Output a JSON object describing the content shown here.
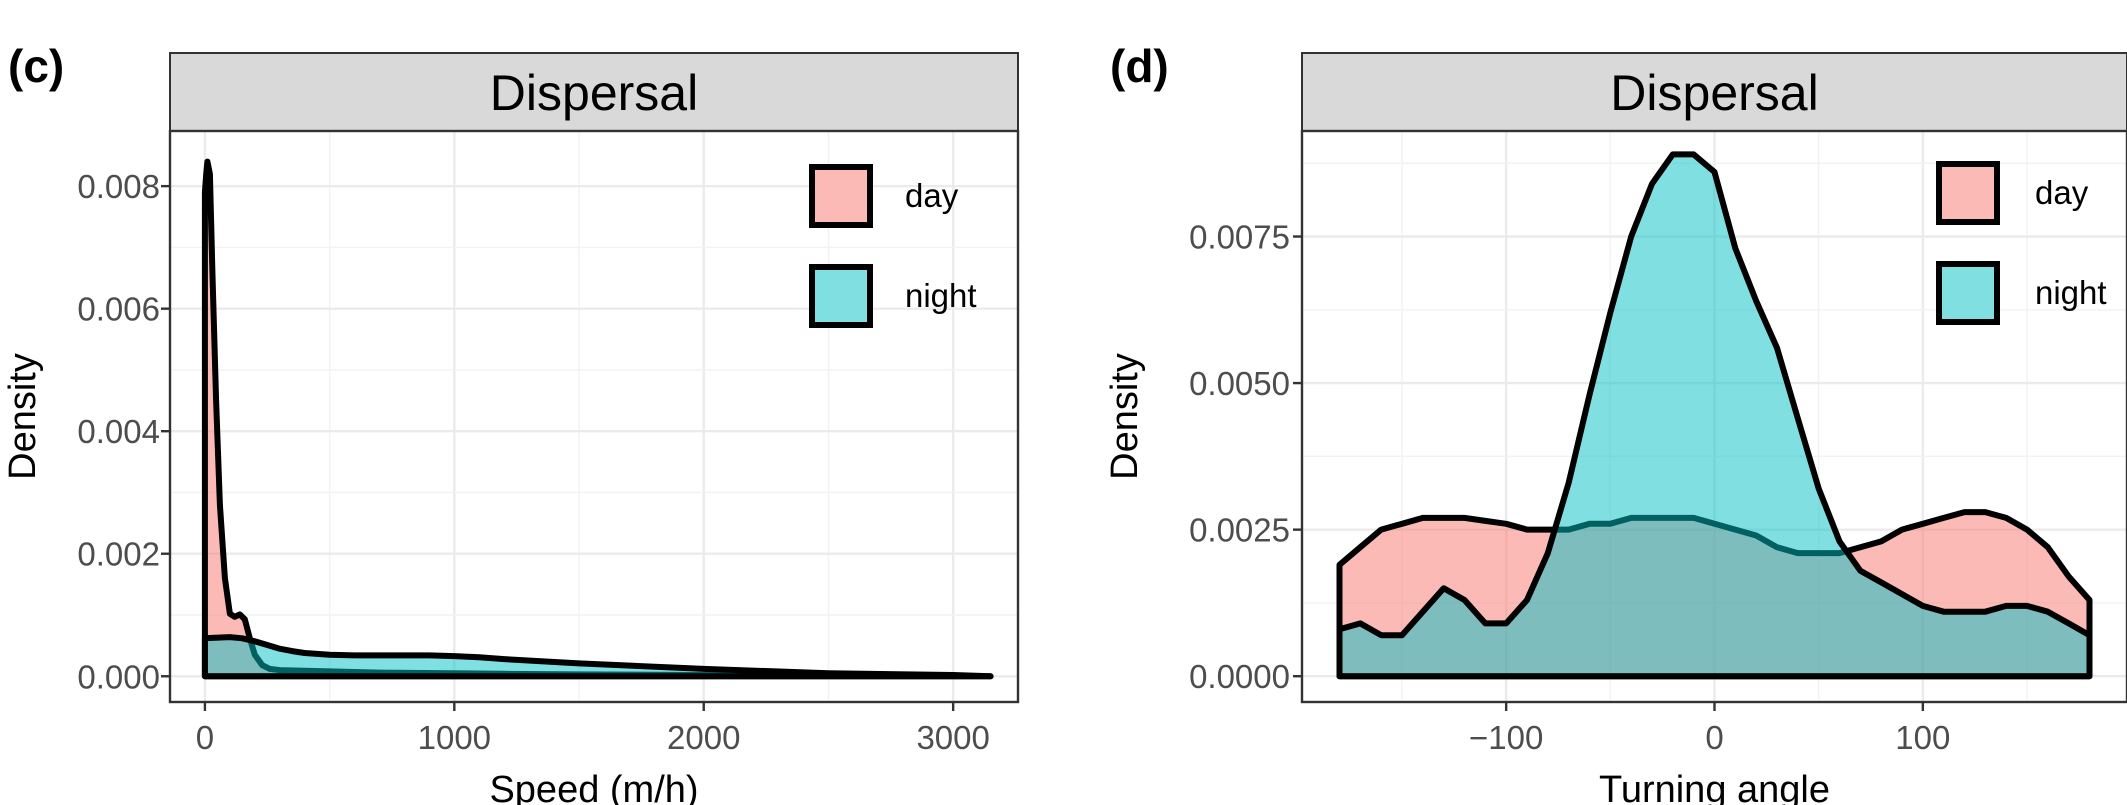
{
  "chart_data": [
    {
      "type": "area",
      "panel_tag": "(c)",
      "strip_title": "Dispersal",
      "xlabel": "Speed (m/h)",
      "ylabel": "Density",
      "xlim": [
        -140,
        3260
      ],
      "ylim": [
        -0.00042,
        0.0089
      ],
      "xticks": [
        0,
        1000,
        2000,
        3000
      ],
      "xtick_labels": [
        "0",
        "1000",
        "2000",
        "3000"
      ],
      "yticks": [
        0,
        0.002,
        0.004,
        0.006,
        0.008
      ],
      "ytick_labels": [
        "0.000",
        "0.002",
        "0.004",
        "0.006",
        "0.008"
      ],
      "legend": {
        "position": "top-right",
        "entries": [
          "day",
          "night"
        ]
      },
      "grid": true,
      "series": [
        {
          "name": "day",
          "color": "#F8766D",
          "x": [
            0,
            5,
            10,
            20,
            30,
            45,
            60,
            80,
            100,
            120,
            140,
            160,
            180,
            200,
            230,
            260,
            300,
            400,
            500,
            700,
            1000,
            1200,
            1500,
            2000,
            2500,
            3000,
            3150
          ],
          "y": [
            0.0079,
            0.0082,
            0.0084,
            0.0082,
            0.0066,
            0.0045,
            0.0028,
            0.0016,
            0.00102,
            0.00097,
            0.00101,
            0.00093,
            0.00062,
            0.00035,
            0.00018,
            0.00012,
            0.0001,
            9e-05,
            8e-05,
            6e-05,
            5e-05,
            4e-05,
            3e-05,
            2e-05,
            1e-05,
            5e-06,
            0.0
          ]
        },
        {
          "name": "night",
          "color": "#00BFC4",
          "x": [
            0,
            40,
            100,
            150,
            200,
            250,
            300,
            350,
            400,
            500,
            600,
            700,
            800,
            900,
            1000,
            1100,
            1200,
            1500,
            2000,
            2500,
            3000,
            3150
          ],
          "y": [
            0.00062,
            0.00063,
            0.00064,
            0.00062,
            0.00057,
            0.00051,
            0.00045,
            0.00041,
            0.00038,
            0.00035,
            0.00034,
            0.00034,
            0.00034,
            0.00034,
            0.00033,
            0.00031,
            0.00028,
            0.00021,
            0.00012,
            5e-05,
            2e-05,
            0.0
          ]
        }
      ]
    },
    {
      "type": "area",
      "panel_tag": "(d)",
      "strip_title": "Dispersal",
      "xlabel": "Turning angle",
      "ylabel": "Density",
      "xlim": [
        -198,
        198
      ],
      "ylim": [
        -0.00044,
        0.0093
      ],
      "xticks": [
        -100,
        0,
        100
      ],
      "xtick_labels": [
        "−100",
        "0",
        "100"
      ],
      "yticks": [
        0,
        0.0025,
        0.005,
        0.0075
      ],
      "ytick_labels": [
        "0.0000",
        "0.0025",
        "0.0050",
        "0.0075"
      ],
      "legend": {
        "position": "top-right",
        "entries": [
          "day",
          "night"
        ]
      },
      "grid": true,
      "series": [
        {
          "name": "day",
          "color": "#F8766D",
          "x": [
            -180,
            -170,
            -160,
            -150,
            -140,
            -130,
            -120,
            -110,
            -100,
            -90,
            -80,
            -70,
            -60,
            -50,
            -40,
            -30,
            -20,
            -10,
            0,
            10,
            20,
            30,
            40,
            50,
            60,
            70,
            80,
            90,
            100,
            110,
            120,
            130,
            140,
            150,
            160,
            170,
            180
          ],
          "y": [
            0.0019,
            0.0022,
            0.0025,
            0.0026,
            0.0027,
            0.0027,
            0.0027,
            0.00265,
            0.0026,
            0.0025,
            0.0025,
            0.0025,
            0.0026,
            0.0026,
            0.0027,
            0.0027,
            0.0027,
            0.0027,
            0.0026,
            0.0025,
            0.0024,
            0.0022,
            0.0021,
            0.0021,
            0.0021,
            0.0022,
            0.0023,
            0.0025,
            0.0026,
            0.0027,
            0.0028,
            0.0028,
            0.0027,
            0.0025,
            0.0022,
            0.0017,
            0.0013
          ]
        },
        {
          "name": "night",
          "color": "#00BFC4",
          "x": [
            -180,
            -170,
            -160,
            -150,
            -140,
            -130,
            -120,
            -110,
            -100,
            -90,
            -80,
            -70,
            -60,
            -50,
            -40,
            -30,
            -20,
            -10,
            0,
            10,
            20,
            30,
            40,
            50,
            60,
            70,
            80,
            90,
            100,
            110,
            120,
            130,
            140,
            150,
            160,
            170,
            180
          ],
          "y": [
            0.0008,
            0.0009,
            0.0007,
            0.0007,
            0.0011,
            0.0015,
            0.0013,
            0.0009,
            0.0009,
            0.0013,
            0.0021,
            0.0033,
            0.0048,
            0.0062,
            0.0075,
            0.0084,
            0.0089,
            0.0089,
            0.0086,
            0.0073,
            0.0064,
            0.0056,
            0.0044,
            0.0032,
            0.0023,
            0.0018,
            0.0016,
            0.0014,
            0.0012,
            0.0011,
            0.0011,
            0.0011,
            0.0012,
            0.0012,
            0.0011,
            0.0009,
            0.0007
          ]
        }
      ]
    }
  ]
}
